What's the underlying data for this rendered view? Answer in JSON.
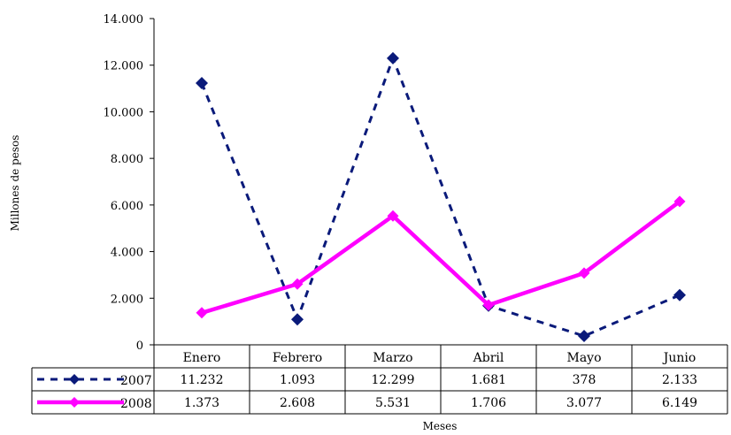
{
  "chart_data": {
    "type": "line",
    "categories": [
      "Enero",
      "Febrero",
      "Marzo",
      "Abril",
      "Mayo",
      "Junio"
    ],
    "series": [
      {
        "name": "2007",
        "values": [
          11232,
          1093,
          12299,
          1681,
          378,
          2133
        ],
        "labels": [
          "11.232",
          "1.093",
          "12.299",
          "1.681",
          "378",
          "2.133"
        ],
        "color": "#0a1a7a",
        "style": "dashed",
        "marker": "diamond"
      },
      {
        "name": "2008",
        "values": [
          1373,
          2608,
          5531,
          1706,
          3077,
          6149
        ],
        "labels": [
          "1.373",
          "2.608",
          "5.531",
          "1.706",
          "3.077",
          "6.149"
        ],
        "color": "#ff00ff",
        "style": "solid",
        "marker": "diamond"
      }
    ],
    "ylim": [
      0,
      14000
    ],
    "yticks": [
      0,
      2000,
      4000,
      6000,
      8000,
      10000,
      12000,
      14000
    ],
    "ytick_labels": [
      "0",
      "2.000",
      "4.000",
      "6.000",
      "8.000",
      "10.000",
      "12.000",
      "14.000"
    ],
    "ylabel": "Millones de pesos",
    "xlabel": "Meses",
    "legend": "data-table",
    "grid": false
  }
}
